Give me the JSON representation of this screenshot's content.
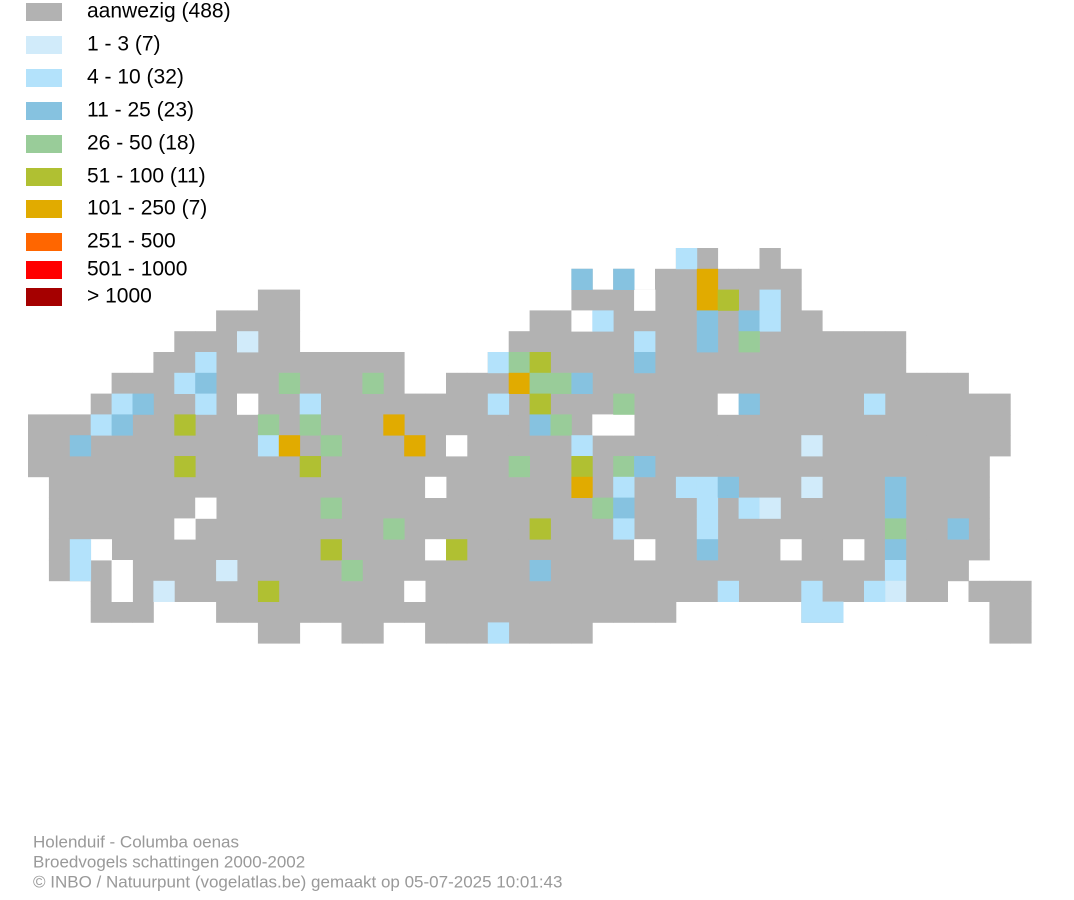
{
  "legend": [
    {
      "label": "aanwezig (488)",
      "color": "#b2b2b2"
    },
    {
      "label": "1 - 3 (7)",
      "color": "#d1ebfa"
    },
    {
      "label": "4 - 10 (32)",
      "color": "#b3e2fb"
    },
    {
      "label": "11 - 25 (23)",
      "color": "#86c2e0"
    },
    {
      "label": "26 - 50 (18)",
      "color": "#99cc99"
    },
    {
      "label": "51 - 100 (11)",
      "color": "#b0c032"
    },
    {
      "label": "101 - 250 (7)",
      "color": "#e1ab00"
    },
    {
      "label": "251 - 500",
      "color": "#ff6600"
    },
    {
      "label": "501 - 1000",
      "color": "#ff0000"
    },
    {
      "label": "> 1000",
      "color": "#a50000"
    }
  ],
  "footer": {
    "species": "Holenduif - Columba oenas",
    "subtitle": "Broedvogels schattingen 2000-2002",
    "credit": "© INBO / Natuurpunt (vogelatlas.be) gemaakt op 05-07-2025 10:01:43"
  }
}
